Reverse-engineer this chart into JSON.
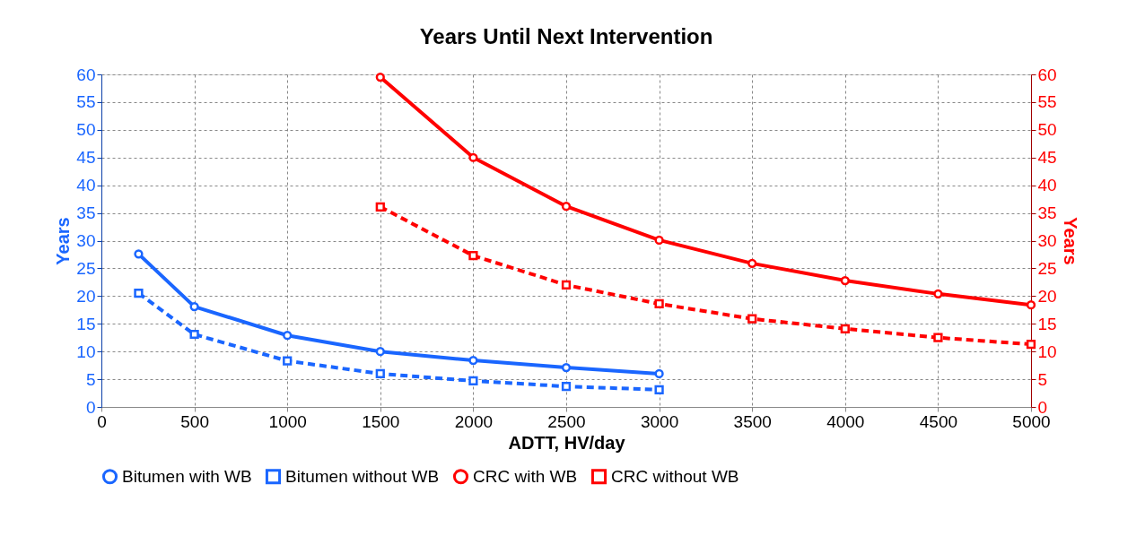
{
  "chart_data": {
    "type": "line",
    "title": "Years Until Next Intervention",
    "xlabel": "ADTT,  HV/day",
    "ylabel": "Years",
    "y2label": "Years",
    "xlim": [
      0,
      5000
    ],
    "xticks": [
      0,
      500,
      1000,
      1500,
      2000,
      2500,
      3000,
      3500,
      4000,
      4500,
      5000
    ],
    "ylim": [
      0,
      60
    ],
    "yticks": [
      0,
      5,
      10,
      15,
      20,
      25,
      30,
      35,
      40,
      45,
      50,
      55,
      60
    ],
    "y2lim": [
      0,
      60
    ],
    "y2ticks": [
      0,
      5,
      10,
      15,
      20,
      25,
      30,
      35,
      40,
      45,
      50,
      55,
      60
    ],
    "grid": true,
    "legend": "bottom",
    "series": [
      {
        "name": "Bitumen with WB",
        "color": "#1a66ff",
        "marker": "circle",
        "line_style": "solid",
        "x": [
          200,
          500,
          1000,
          1500,
          2000,
          2500,
          3000
        ],
        "values": [
          27.6,
          18.1,
          12.9,
          10.0,
          8.4,
          7.1,
          6.0
        ]
      },
      {
        "name": "Bitumen without WB",
        "color": "#1a66ff",
        "marker": "square",
        "line_style": "dashed",
        "x": [
          200,
          500,
          1000,
          1500,
          2000,
          2500,
          3000
        ],
        "values": [
          20.5,
          13.1,
          8.3,
          6.0,
          4.7,
          3.7,
          3.1
        ]
      },
      {
        "name": "CRC with WB",
        "color": "#ff0000",
        "marker": "circle",
        "line_style": "solid",
        "axis": "y2",
        "x": [
          1500,
          2000,
          2500,
          3000,
          3500,
          4000,
          4500,
          5000
        ],
        "values": [
          59.5,
          45.0,
          36.2,
          30.1,
          25.9,
          22.8,
          20.4,
          18.4
        ]
      },
      {
        "name": "CRC without WB",
        "color": "#ff0000",
        "marker": "square",
        "line_style": "dashed",
        "axis": "y2",
        "x": [
          1500,
          2000,
          2500,
          3000,
          3500,
          4000,
          4500,
          5000
        ],
        "values": [
          36.1,
          27.3,
          22.0,
          18.6,
          15.9,
          14.1,
          12.5,
          11.3
        ]
      }
    ]
  }
}
